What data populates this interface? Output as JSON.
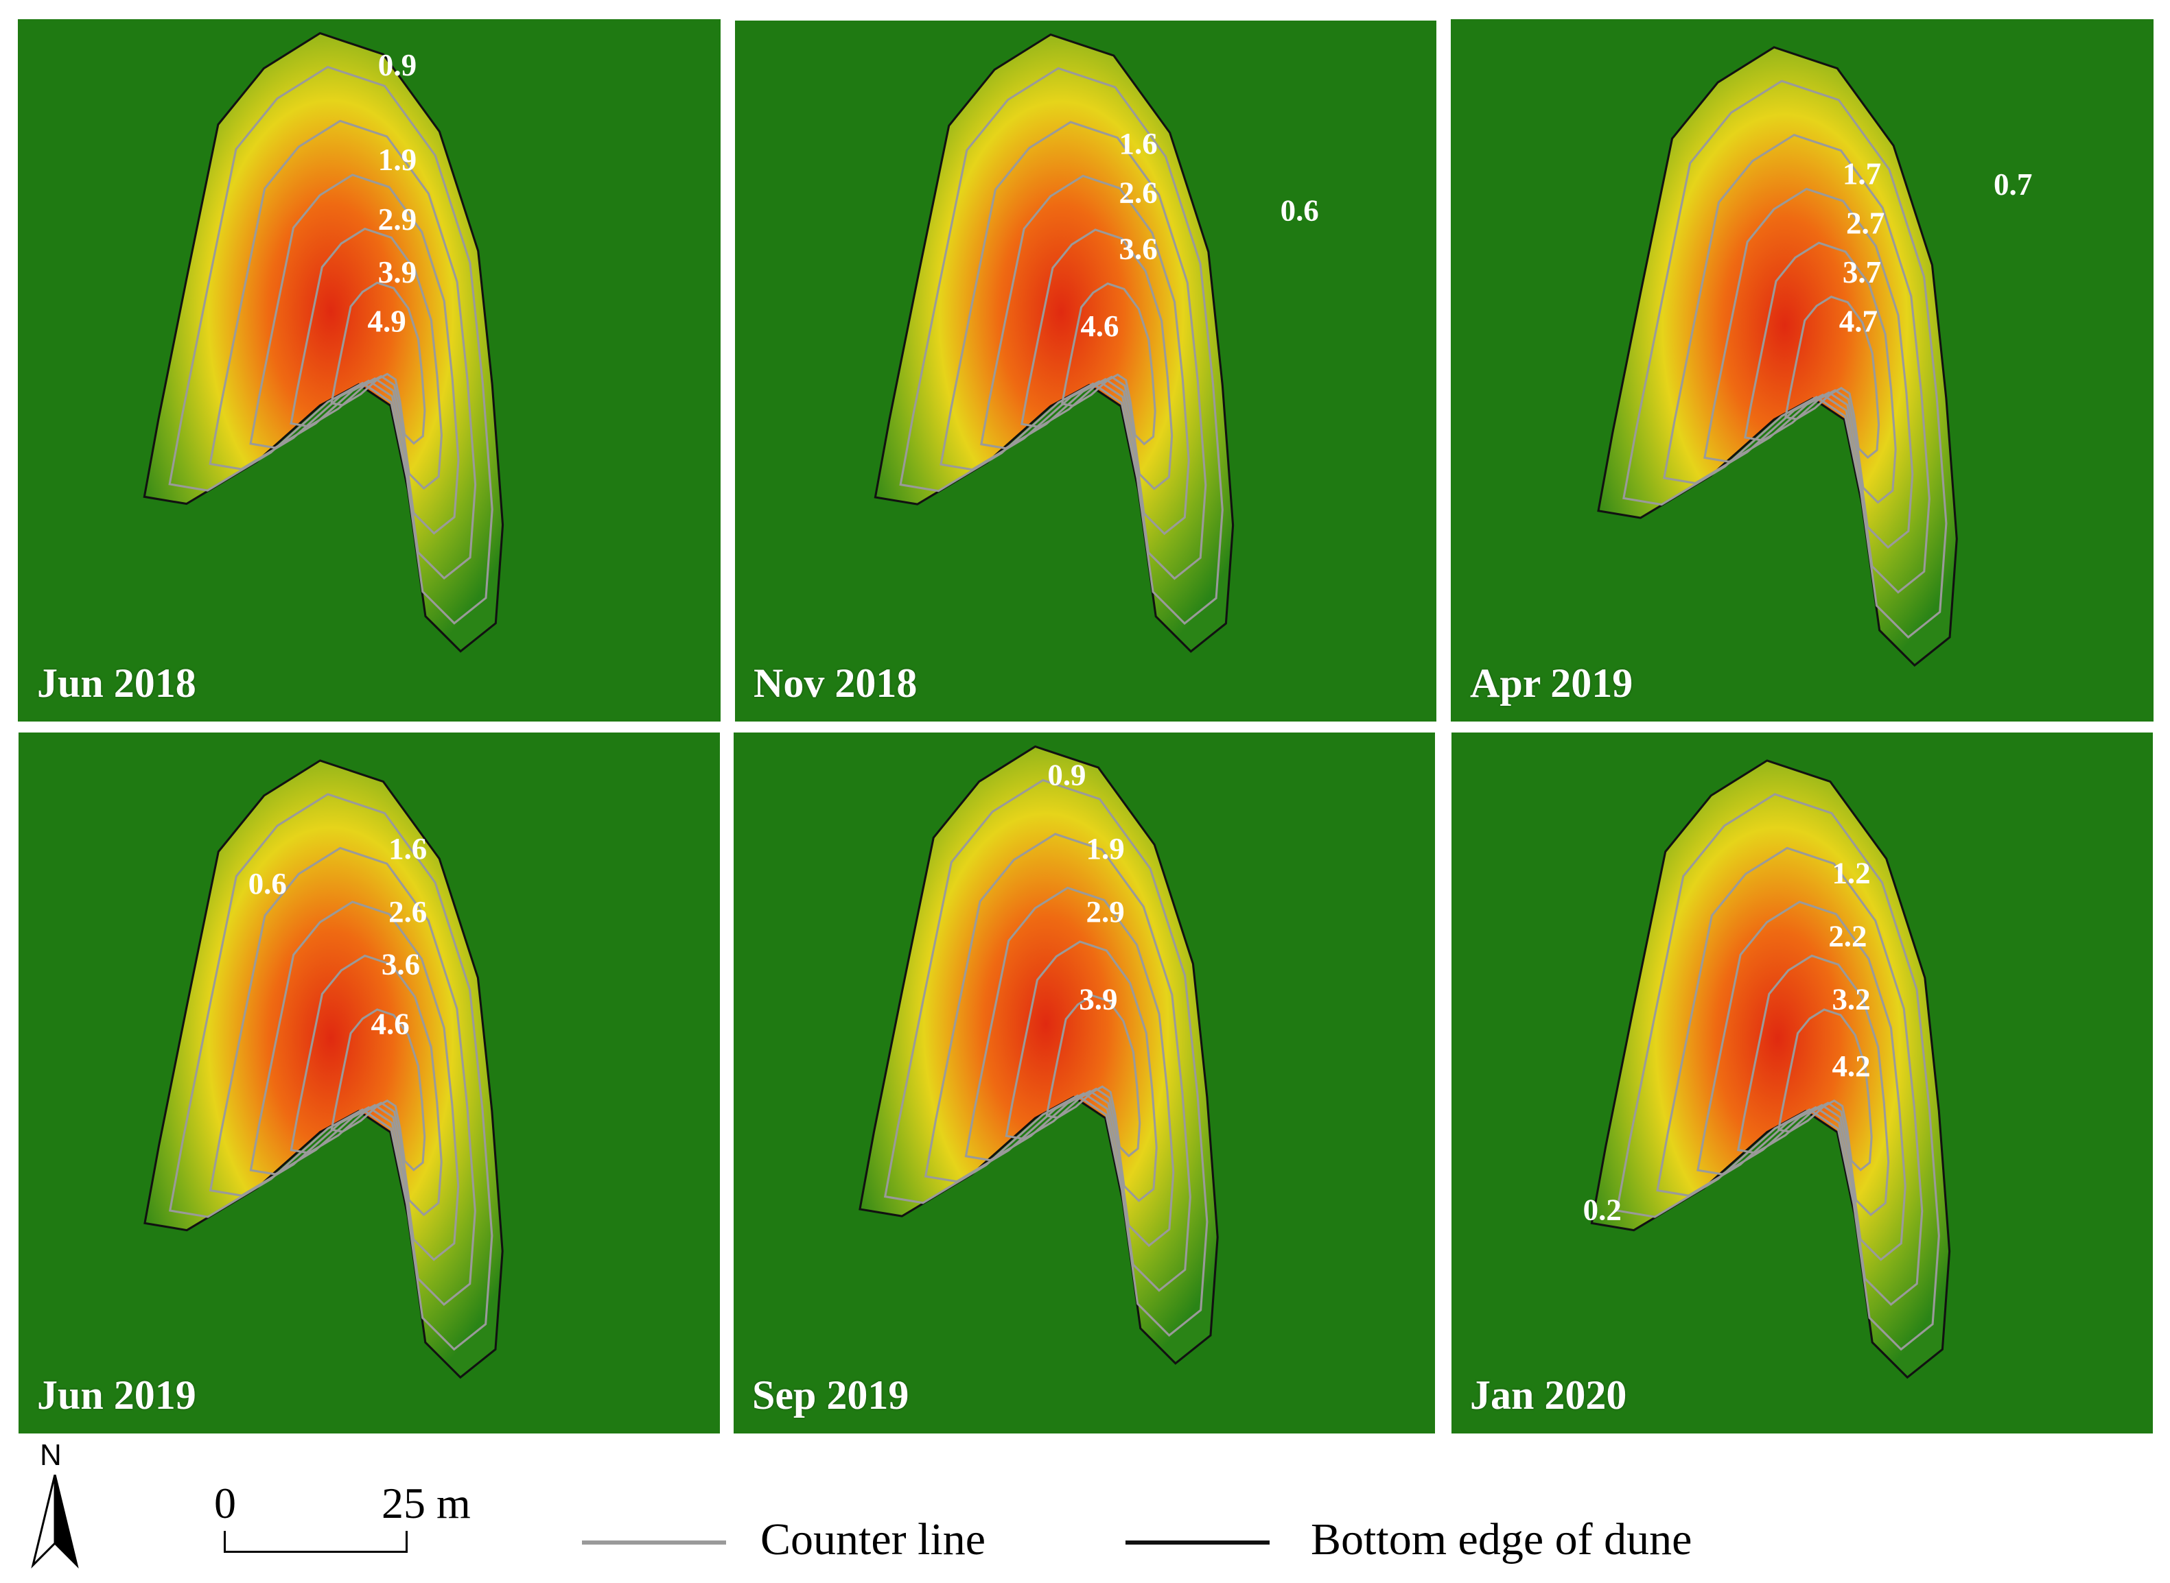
{
  "panels": [
    {
      "label": "Jun 2018",
      "contours": [
        "0.9",
        "1.9",
        "2.9",
        "3.9",
        "4.9"
      ]
    },
    {
      "label": "Nov 2018",
      "contours": [
        "1.6",
        "2.6",
        "3.6",
        "4.6",
        "0.6"
      ]
    },
    {
      "label": "Apr 2019",
      "contours": [
        "1.7",
        "0.7",
        "2.7",
        "3.7",
        "4.7"
      ]
    },
    {
      "label": "Jun 2019",
      "contours": [
        "1.6",
        "0.6",
        "2.6",
        "3.6",
        "4.6"
      ]
    },
    {
      "label": "Sep 2019",
      "contours": [
        "0.9",
        "1.9",
        "2.9",
        "3.9"
      ]
    },
    {
      "label": "Jan 2020",
      "contours": [
        "1.2",
        "2.2",
        "3.2",
        "4.2",
        "0.2"
      ]
    }
  ],
  "legend": {
    "north": "N",
    "scale_start": "0",
    "scale_end": "25 m",
    "contour_label": "Counter line",
    "edge_label": "Bottom edge of dune"
  },
  "colors": {
    "background_green": "#1f7a12",
    "contour_line": "#9a9a9a",
    "edge_line": "#111111",
    "label_text": "#ffffff"
  }
}
